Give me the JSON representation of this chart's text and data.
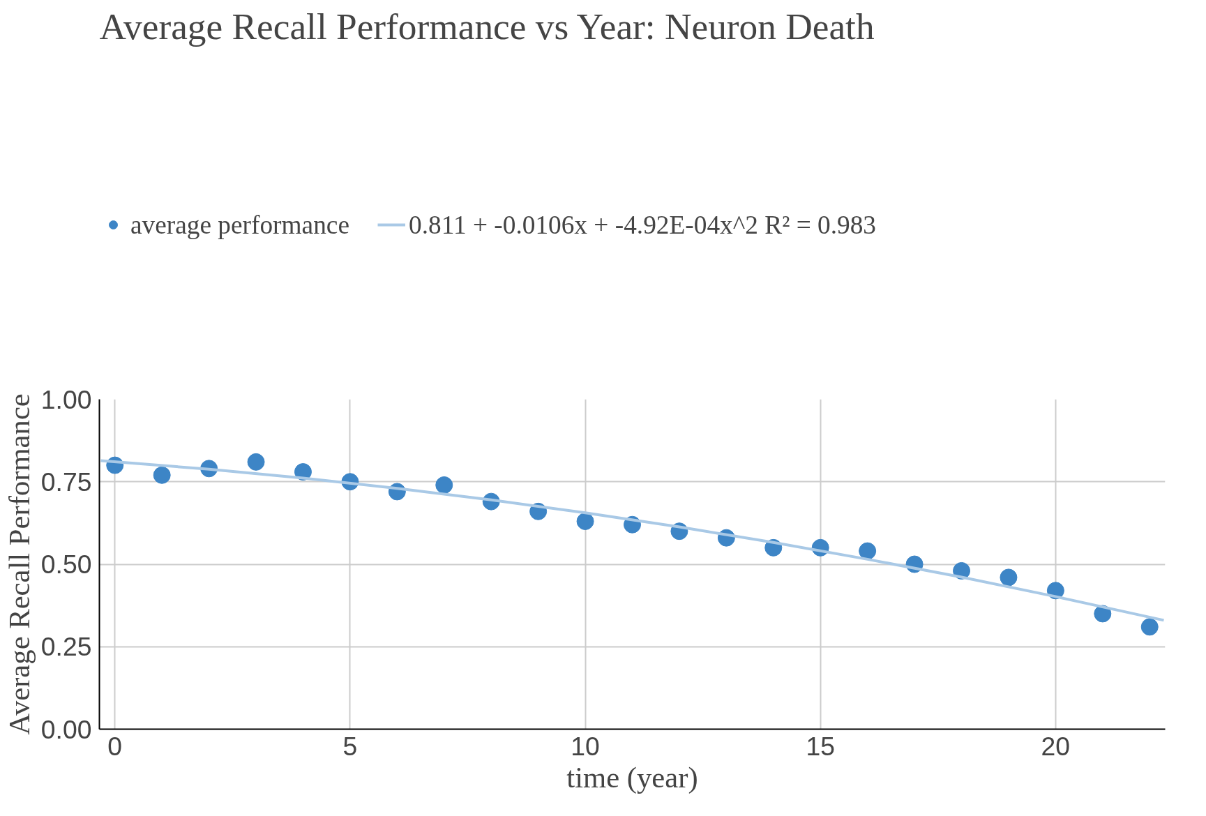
{
  "chart_data": {
    "type": "scatter",
    "title": "Average Recall Performance vs Year: Neuron Death",
    "xlabel": "time (year)",
    "ylabel": "Average Recall Performance",
    "xlim": [
      -0.33,
      22.33
    ],
    "xticks": [
      0,
      5,
      10,
      15,
      20
    ],
    "ylim": [
      0,
      1
    ],
    "yticks": [
      {
        "value": 0,
        "label": "0.00"
      },
      {
        "value": 0.25,
        "label": "0.25"
      },
      {
        "value": 0.5,
        "label": "0.50"
      },
      {
        "value": 0.75,
        "label": "0.75"
      },
      {
        "value": 1,
        "label": "1.00"
      }
    ],
    "grid": true,
    "legend": "top left",
    "series": [
      {
        "name": "average performance",
        "marker": "circle",
        "color": "#3d85c6",
        "x": [
          0,
          1,
          2,
          3,
          4,
          5,
          6,
          7,
          8,
          9,
          10,
          11,
          12,
          13,
          14,
          15,
          16,
          17,
          18,
          19,
          20,
          21,
          22
        ],
        "values": [
          0.8,
          0.77,
          0.79,
          0.81,
          0.78,
          0.75,
          0.72,
          0.74,
          0.69,
          0.66,
          0.63,
          0.62,
          0.6,
          0.58,
          0.55,
          0.55,
          0.54,
          0.5,
          0.48,
          0.46,
          0.42,
          0.35,
          0.31
        ]
      },
      {
        "name": "0.811 + -0.0106x + -4.92E-04x^2 R² = 0.983",
        "type": "line",
        "marker": "none",
        "color": "#a9c9e6",
        "x": [
          -0.3,
          2,
          4,
          6,
          8,
          10,
          12,
          14,
          16,
          18,
          20,
          22.3
        ],
        "values": [
          0.814,
          0.788,
          0.761,
          0.73,
          0.695,
          0.656,
          0.613,
          0.566,
          0.515,
          0.461,
          0.402,
          0.33
        ]
      }
    ]
  }
}
